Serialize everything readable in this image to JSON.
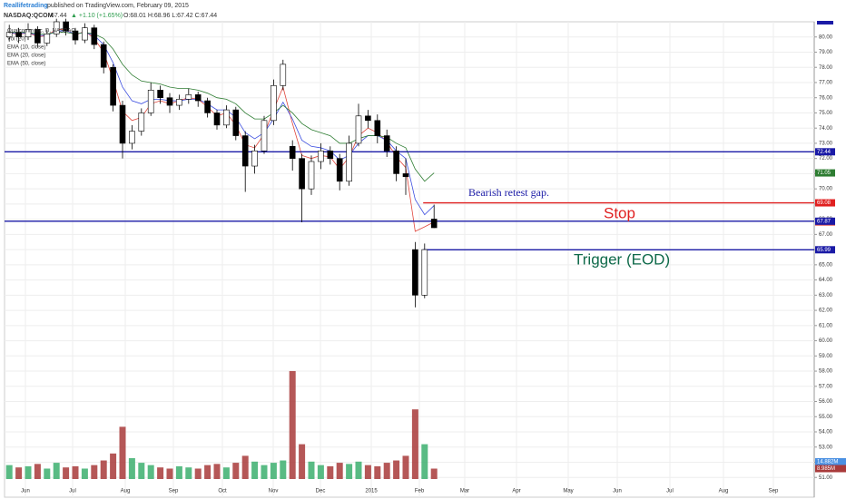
{
  "chart_data": {
    "type": "candlestick",
    "header": {
      "author": "Reallifetrading",
      "published": "published on TradingView.com, February 09, 2015",
      "symbol": "NASDAQ:QCOM",
      "last": 67.44,
      "change": "▲ +1.10 (+1.65%)",
      "ohlc_text": "O:68.01 H:68.96 L:67.42 C:67.44"
    },
    "legend": {
      "title": "Qualcomm Inc, D, NASDAQ",
      "volume": "Vol (20)"
    },
    "x_labels": [
      "Jun",
      "Jul",
      "Aug",
      "Sep",
      "Oct",
      "Nov",
      "Dec",
      "2015",
      "Feb",
      "Mar",
      "Apr",
      "May",
      "Jun",
      "Jul",
      "Aug",
      "Sep"
    ],
    "ylim": [
      49.7,
      81.0
    ],
    "yticks": [
      {
        "value": 51,
        "label": "51.00"
      },
      {
        "value": 52,
        "label": "52.00"
      },
      {
        "value": 53,
        "label": "53.00"
      },
      {
        "value": 54,
        "label": "54.00"
      },
      {
        "value": 55,
        "label": "55.00"
      },
      {
        "value": 56,
        "label": "56.00"
      },
      {
        "value": 57,
        "label": "57.00"
      },
      {
        "value": 58,
        "label": "58.00"
      },
      {
        "value": 59,
        "label": "59.00"
      },
      {
        "value": 60,
        "label": "60.00"
      },
      {
        "value": 61,
        "label": "61.00"
      },
      {
        "value": 62,
        "label": "62.00"
      },
      {
        "value": 63,
        "label": "63.00"
      },
      {
        "value": 64,
        "label": "64.00"
      },
      {
        "value": 65,
        "label": "65.00"
      },
      {
        "value": 66,
        "label": "66.00"
      },
      {
        "value": 67,
        "label": "67.00"
      },
      {
        "value": 68,
        "label": "68.00"
      },
      {
        "value": 69,
        "label": "69.00"
      },
      {
        "value": 70,
        "label": "70.00"
      },
      {
        "value": 71,
        "label": "71.00"
      },
      {
        "value": 72,
        "label": "72.00"
      },
      {
        "value": 73,
        "label": "73.00"
      },
      {
        "value": 74,
        "label": "74.00"
      },
      {
        "value": 75,
        "label": "75.00"
      },
      {
        "value": 76,
        "label": "76.00"
      },
      {
        "value": 77,
        "label": "77.00"
      },
      {
        "value": 78,
        "label": "78.00"
      },
      {
        "value": 79,
        "label": "79.00"
      },
      {
        "value": 80,
        "label": "80.00"
      }
    ],
    "grid": true,
    "up_color": "#ffffff",
    "down_color": "#000000",
    "ohlc": [
      [
        80.0,
        80.8,
        79.7,
        80.3
      ],
      [
        80.3,
        80.6,
        79.6,
        80.0
      ],
      [
        80.0,
        80.9,
        79.8,
        80.5
      ],
      [
        80.5,
        80.7,
        79.3,
        79.6
      ],
      [
        79.6,
        80.5,
        79.4,
        80.2
      ],
      [
        80.2,
        81.2,
        80.0,
        81.0
      ],
      [
        81.0,
        81.2,
        80.1,
        80.4
      ],
      [
        80.4,
        80.6,
        79.5,
        79.8
      ],
      [
        79.8,
        80.9,
        79.6,
        80.6
      ],
      [
        80.6,
        80.8,
        79.2,
        79.5
      ],
      [
        79.5,
        79.7,
        77.6,
        78.0
      ],
      [
        78.0,
        78.2,
        75.1,
        75.5
      ],
      [
        75.5,
        75.8,
        72.0,
        73.0
      ],
      [
        73.0,
        74.2,
        72.6,
        73.8
      ],
      [
        73.8,
        75.3,
        73.5,
        75.0
      ],
      [
        75.0,
        77.0,
        74.8,
        76.5
      ],
      [
        76.5,
        76.8,
        75.6,
        76.0
      ],
      [
        76.0,
        76.3,
        75.0,
        75.5
      ],
      [
        75.5,
        76.2,
        75.2,
        75.9
      ],
      [
        75.9,
        76.6,
        75.6,
        76.2
      ],
      [
        76.2,
        76.4,
        75.4,
        75.8
      ],
      [
        75.8,
        76.0,
        74.7,
        75.0
      ],
      [
        75.0,
        75.2,
        73.9,
        74.2
      ],
      [
        74.2,
        75.5,
        74.0,
        75.2
      ],
      [
        75.2,
        75.4,
        73.2,
        73.5
      ],
      [
        73.5,
        73.8,
        69.8,
        71.5
      ],
      [
        71.5,
        72.9,
        71.0,
        72.5
      ],
      [
        72.5,
        74.8,
        72.3,
        74.5
      ],
      [
        74.5,
        77.2,
        74.2,
        76.8
      ],
      [
        76.8,
        78.5,
        76.5,
        78.2
      ],
      [
        72.8,
        73.2,
        71.2,
        72.0
      ],
      [
        72.0,
        72.3,
        67.8,
        70.0
      ],
      [
        70.0,
        72.2,
        69.6,
        71.8
      ],
      [
        71.8,
        73.0,
        71.3,
        72.5
      ],
      [
        72.5,
        72.8,
        71.6,
        72.0
      ],
      [
        72.0,
        72.3,
        69.9,
        70.5
      ],
      [
        70.5,
        73.5,
        70.2,
        73.0
      ],
      [
        73.0,
        75.6,
        72.8,
        74.8
      ],
      [
        74.8,
        75.2,
        74.0,
        74.5
      ],
      [
        74.5,
        74.9,
        73.0,
        73.5
      ],
      [
        73.5,
        73.9,
        72.1,
        72.5
      ],
      [
        72.5,
        72.8,
        70.5,
        71.0
      ],
      [
        71.0,
        72.0,
        69.6,
        70.8
      ],
      [
        66.0,
        66.5,
        62.2,
        63.0
      ],
      [
        63.0,
        66.4,
        62.8,
        66.0
      ],
      [
        68.01,
        68.96,
        67.42,
        67.44
      ]
    ],
    "volume": [
      12,
      10,
      11,
      13,
      9,
      14,
      10,
      11,
      9,
      12,
      16,
      22,
      45,
      18,
      14,
      12,
      10,
      9,
      11,
      10,
      9,
      12,
      13,
      10,
      14,
      20,
      15,
      12,
      14,
      16,
      93,
      30,
      15,
      12,
      11,
      14,
      13,
      15,
      12,
      11,
      14,
      16,
      20,
      60,
      30,
      8.985
    ],
    "volume_lim": [
      0,
      100
    ],
    "volume_up_color": "#3caf6e",
    "volume_down_color": "#a83a3a",
    "volume_labels": [
      {
        "value": 14.882,
        "label": "14.882M",
        "color": "#4a90e2"
      },
      {
        "value": 8.985,
        "label": "8.985M",
        "color": "#a83a3a"
      }
    ],
    "ema": [
      {
        "name": "EMA (10, close)",
        "color": "#e0463c",
        "values": [
          80.3,
          80.15,
          80.3,
          80.0,
          80.1,
          80.5,
          80.5,
          80.1,
          80.4,
          79.9,
          79.0,
          77.2,
          75.1,
          74.5,
          74.7,
          75.6,
          75.8,
          75.6,
          75.8,
          76.0,
          75.9,
          75.4,
          74.8,
          75.0,
          74.2,
          72.9,
          72.7,
          73.6,
          75.2,
          76.7,
          74.3,
          72.2,
          72.0,
          72.2,
          72.1,
          71.3,
          72.1,
          73.5,
          74.0,
          73.7,
          73.1,
          72.1,
          71.4,
          67.2,
          67.5,
          67.82
        ]
      },
      {
        "name": "EMA (20, close)",
        "color": "#3c4ee0",
        "values": [
          80.3,
          80.2,
          80.3,
          80.1,
          80.1,
          80.4,
          80.4,
          80.2,
          80.3,
          80.1,
          79.5,
          78.3,
          76.7,
          75.8,
          75.6,
          75.9,
          75.9,
          75.8,
          75.8,
          75.9,
          75.9,
          75.6,
          75.2,
          75.2,
          74.7,
          73.7,
          73.3,
          73.7,
          74.6,
          75.7,
          74.6,
          73.2,
          72.8,
          72.7,
          72.5,
          71.9,
          72.2,
          73.0,
          73.5,
          73.5,
          73.2,
          72.5,
          72.0,
          69.3,
          68.3,
          68.9
        ]
      },
      {
        "name": "EMA (50, close)",
        "color": "#2e7d32",
        "values": [
          80.3,
          80.3,
          80.3,
          80.2,
          80.2,
          80.3,
          80.3,
          80.2,
          80.3,
          80.2,
          79.9,
          79.2,
          78.2,
          77.5,
          77.1,
          77.0,
          76.9,
          76.7,
          76.6,
          76.6,
          76.5,
          76.3,
          76.0,
          75.9,
          75.6,
          75.0,
          74.6,
          74.6,
          75.0,
          75.5,
          75.0,
          74.3,
          73.9,
          73.7,
          73.5,
          73.0,
          73.0,
          73.3,
          73.5,
          73.5,
          73.4,
          73.0,
          72.7,
          71.3,
          70.5,
          71.05
        ]
      }
    ],
    "levels": [
      {
        "value": 72.44,
        "color": "#1a1aa6",
        "extended": true
      },
      {
        "value": 67.87,
        "color": "#1a1aa6",
        "extended": true
      },
      {
        "value": 69.08,
        "color": "#e02020",
        "extended": false
      },
      {
        "value": 65.99,
        "color": "#1a1aa6",
        "extended": false
      }
    ],
    "annotations": [
      {
        "text": "Bearish retest gap.",
        "color": "#1a1aa6"
      },
      {
        "text": "Stop",
        "color": "#e02020"
      },
      {
        "text": "Trigger (EOD)",
        "color": "#0f6a4a"
      }
    ]
  }
}
